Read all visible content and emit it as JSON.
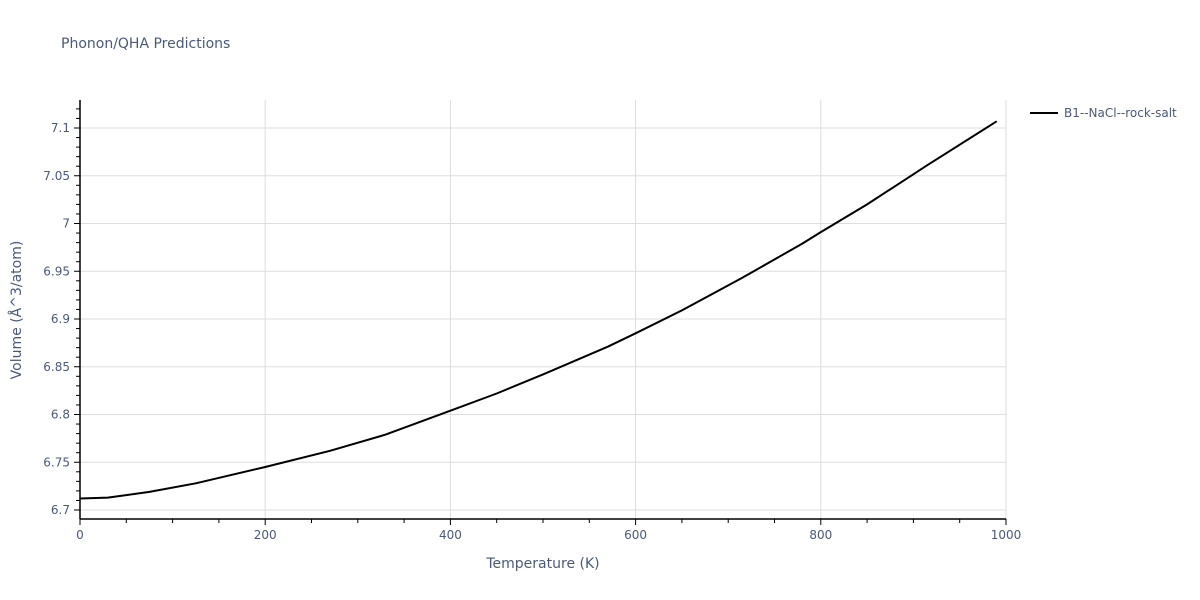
{
  "title": "Phonon/QHA Predictions",
  "chart_data": {
    "type": "line",
    "title": "Phonon/QHA Predictions",
    "xlabel": "Temperature (K)",
    "ylabel": "Volume (Å^3/atom)",
    "xlim": [
      0,
      1000
    ],
    "ylim": [
      6.69,
      7.13
    ],
    "xticks": [
      0,
      200,
      400,
      600,
      800,
      1000
    ],
    "yticks": [
      6.7,
      6.75,
      6.8,
      6.85,
      6.9,
      6.95,
      7,
      7.05,
      7.1
    ],
    "ytick_labels": [
      "6.7",
      "6.75",
      "6.8",
      "6.85",
      "6.9",
      "6.95",
      "7",
      "7.05",
      "7.1"
    ],
    "grid": true,
    "legend_position": "right-top",
    "series": [
      {
        "name": "B1--NaCl--rock-salt",
        "color": "#000000",
        "x": [
          0,
          30,
          75,
          125,
          200,
          270,
          330,
          400,
          450,
          500,
          570,
          600,
          650,
          715,
          780,
          800,
          850,
          915,
          990
        ],
        "y": [
          6.712,
          6.713,
          6.719,
          6.728,
          6.745,
          6.762,
          6.779,
          6.804,
          6.822,
          6.842,
          6.871,
          6.885,
          6.909,
          6.943,
          6.979,
          6.991,
          7.02,
          7.061,
          7.107
        ]
      }
    ]
  },
  "legend": {
    "items": [
      {
        "label": "B1--NaCl--rock-salt",
        "color": "#000000"
      }
    ]
  }
}
